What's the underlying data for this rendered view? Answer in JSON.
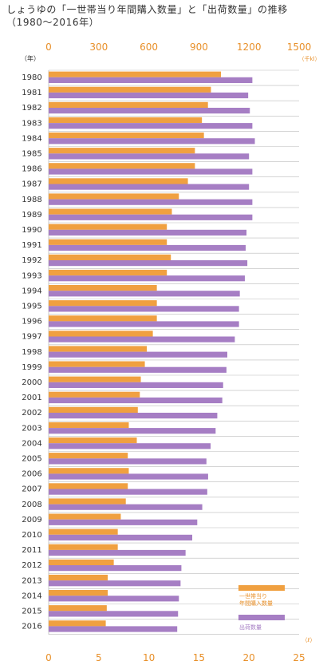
{
  "title": "しょうゆの「一世帯当り年間購入数量」と「出荷数量」の推移（1980〜2016年）",
  "colors": {
    "purchase": "#f0a040",
    "shipment": "#a67ec4",
    "axis_text": "#e8902a",
    "grid": "#bbbbbb",
    "label": "#333333"
  },
  "chart_data": {
    "type": "bar",
    "orientation": "horizontal",
    "categories": [
      "1980",
      "1981",
      "1982",
      "1983",
      "1984",
      "1985",
      "1986",
      "1987",
      "1988",
      "1989",
      "1990",
      "1991",
      "1992",
      "1993",
      "1994",
      "1995",
      "1996",
      "1997",
      "1998",
      "1999",
      "2000",
      "2001",
      "2002",
      "2003",
      "2004",
      "2005",
      "2006",
      "2007",
      "2008",
      "2009",
      "2010",
      "2011",
      "2012",
      "2013",
      "2014",
      "2015",
      "2016"
    ],
    "year_axis_label": "（年）",
    "top_axis": {
      "unit": "（千kl）",
      "ticks": [
        0,
        300,
        600,
        900,
        1200,
        1500
      ],
      "lim": [
        0,
        1500
      ]
    },
    "bottom_axis": {
      "unit": "（ℓ）",
      "ticks": [
        0,
        5,
        10,
        15,
        20,
        25
      ],
      "lim": [
        0,
        25
      ]
    },
    "series": [
      {
        "name": "一世帯当り\n年間購入数量",
        "axis": "bottom",
        "color": "#f0a040",
        "values": [
          17.2,
          16.2,
          15.9,
          15.3,
          15.5,
          14.6,
          14.6,
          13.9,
          13.0,
          12.3,
          11.8,
          11.8,
          12.2,
          11.8,
          10.8,
          10.8,
          10.8,
          10.4,
          9.8,
          9.6,
          9.2,
          9.1,
          8.9,
          8.0,
          8.8,
          7.9,
          8.0,
          7.9,
          7.7,
          7.2,
          6.9,
          6.9,
          6.5,
          5.9,
          5.9,
          5.8,
          5.7
        ]
      },
      {
        "name": "出荷数量",
        "axis": "top",
        "color": "#a67ec4",
        "values": [
          1220,
          1195,
          1205,
          1220,
          1235,
          1200,
          1220,
          1200,
          1220,
          1220,
          1185,
          1180,
          1190,
          1175,
          1145,
          1140,
          1140,
          1115,
          1070,
          1065,
          1045,
          1040,
          1010,
          1000,
          970,
          945,
          955,
          950,
          920,
          890,
          860,
          820,
          795,
          790,
          780,
          775,
          770
        ]
      }
    ],
    "legend": {
      "position": "bottom-right",
      "entries": [
        "一世帯当り\n年間購入数量",
        "出荷数量"
      ]
    }
  }
}
